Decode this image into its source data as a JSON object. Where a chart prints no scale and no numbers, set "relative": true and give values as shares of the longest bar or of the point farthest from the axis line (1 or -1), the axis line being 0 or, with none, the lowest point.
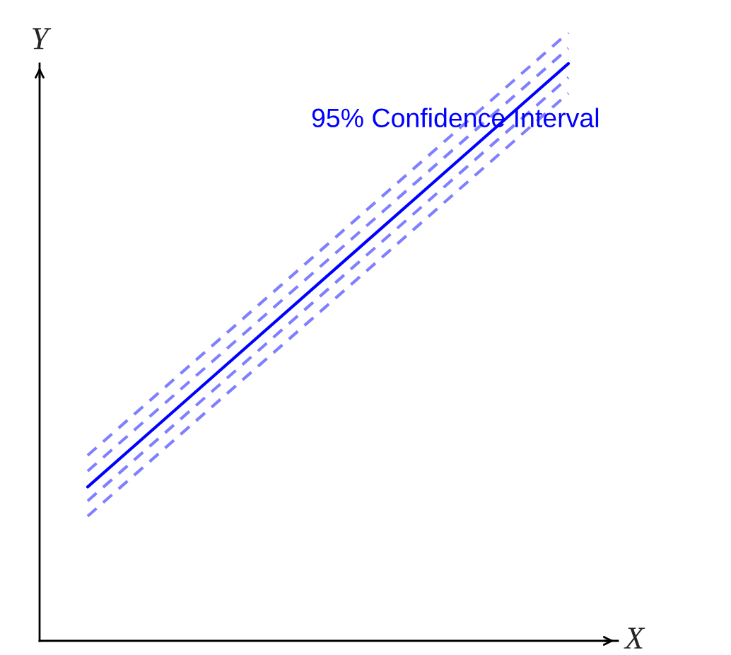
{
  "chart_data": {
    "type": "line",
    "relative": true,
    "xlabel": "X",
    "ylabel": "Y",
    "categories": [
      null,
      null
    ],
    "annotations": [
      "95% Confidence Interval"
    ],
    "legend": false,
    "marker": "none",
    "series": [
      {
        "color": "#0000ff",
        "line_style": "solid",
        "values": [
          0.253,
          0.949
        ]
      },
      {
        "color": "#8080ff",
        "line_style": "dashed",
        "values": [
          0.305,
          1.0
        ]
      },
      {
        "color": "#8080ff",
        "line_style": "dashed",
        "values": [
          0.279,
          0.974
        ]
      },
      {
        "color": "#8080ff",
        "line_style": "dashed",
        "values": [
          0.23,
          0.926
        ]
      },
      {
        "color": "#8080ff",
        "line_style": "dashed",
        "values": [
          0.205,
          0.9
        ]
      }
    ]
  }
}
